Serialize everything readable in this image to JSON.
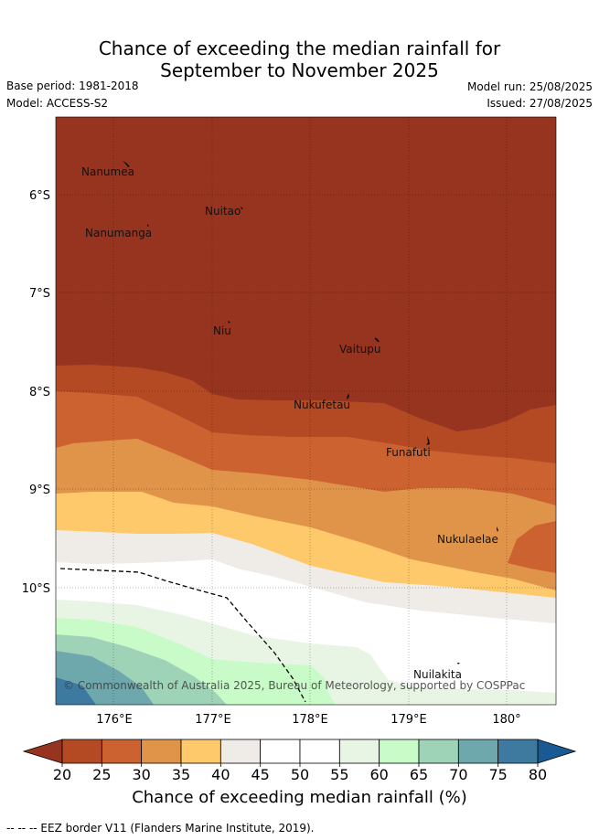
{
  "title_line1": "Chance of exceeding the median rainfall for",
  "title_line2": "September to November 2025",
  "base_period": "Base period: 1981-2018",
  "model": "Model: ACCESS-S2",
  "model_run": "Model run: 25/08/2025",
  "issued": "Issued: 27/08/2025",
  "lat_labels": [
    "6°S",
    "7°S",
    "8°S",
    "9°S",
    "10°S"
  ],
  "lon_labels": [
    "176°E",
    "177°E",
    "178°E",
    "179°E",
    "180°"
  ],
  "places": {
    "nanumea": "Nanumea",
    "nuitao": "Nuitao",
    "nanumanga": "Nanumanga",
    "niu": "Niu",
    "vaitupu": "Vaitupu",
    "nukufetau": "Nukufetau",
    "funafuti": "Funafuti",
    "nukulaelae": "Nukulaelae",
    "nuilakita": "Nuilakita"
  },
  "copyright": "© Commonwealth of Australia 2025, Bureau of Meteorology, supported by COSPPac",
  "colorbar": {
    "ticks": [
      "20",
      "25",
      "30",
      "35",
      "40",
      "45",
      "50",
      "55",
      "60",
      "65",
      "70",
      "75",
      "80"
    ],
    "colors": [
      "#b34a24",
      "#cc6230",
      "#e0944a",
      "#fdc96b",
      "#efebe6",
      "#ffffff",
      "#ffffff",
      "#e8f5e4",
      "#c8fbc8",
      "#9fd3b8",
      "#6fa8ac",
      "#3e7aa0"
    ],
    "low_extend_color": "#963420",
    "high_extend_color": "#1a5a94",
    "title": "Chance of exceeding median rainfall (%)"
  },
  "footer": "--  --  -- EEZ border V11 (Flanders Marine Institute, 2019)."
}
